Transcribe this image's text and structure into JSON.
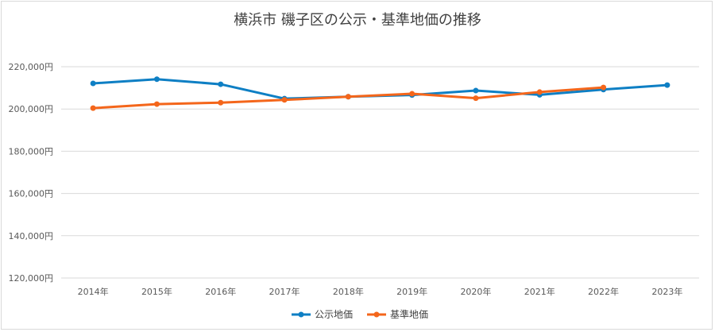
{
  "chart_data": {
    "type": "line",
    "title": "横浜市 磯子区の公示・基準地価の推移",
    "xlabel": "",
    "ylabel": "",
    "categories": [
      "2014年",
      "2015年",
      "2016年",
      "2017年",
      "2018年",
      "2019年",
      "2020年",
      "2021年",
      "2022年",
      "2023年"
    ],
    "ylim": [
      120000,
      220000
    ],
    "yticks": [
      120000,
      140000,
      160000,
      180000,
      200000,
      220000
    ],
    "ytick_labels": [
      "120,000円",
      "140,000円",
      "160,000円",
      "180,000円",
      "200,000円",
      "220,000円"
    ],
    "grid": true,
    "legend_position": "bottom",
    "series": [
      {
        "name": "公示地価",
        "color": "#0E7FC4",
        "values": [
          212100,
          214100,
          211700,
          204900,
          205800,
          206600,
          208700,
          206700,
          209200,
          211300
        ]
      },
      {
        "name": "基準地価",
        "color": "#F4661B",
        "values": [
          200400,
          202300,
          203000,
          204300,
          205800,
          207200,
          205100,
          208000,
          210200,
          null
        ]
      }
    ]
  }
}
